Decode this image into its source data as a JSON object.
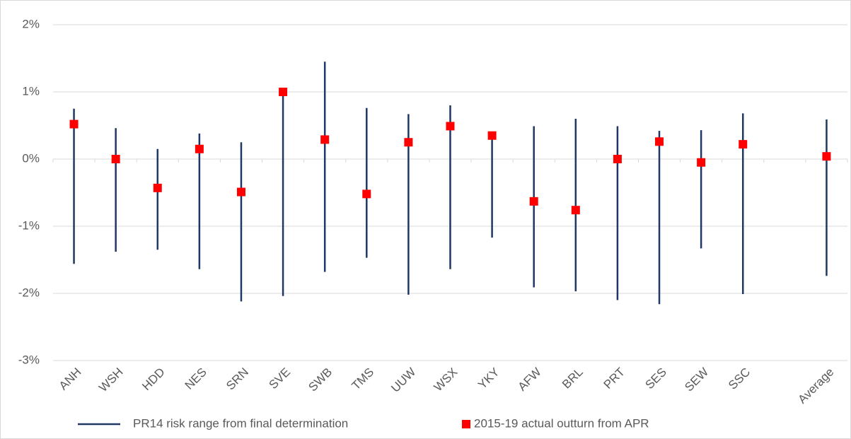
{
  "chart_data": {
    "type": "range",
    "categories": [
      "ANH",
      "WSH",
      "HDD",
      "NES",
      "SRN",
      "SVE",
      "SWB",
      "TMS",
      "UUW",
      "WSX",
      "YKY",
      "AFW",
      "BRL",
      "PRT",
      "SES",
      "SEW",
      "SSC",
      null,
      "Average"
    ],
    "series": [
      {
        "name": "PR14 risk range from final determination",
        "color": "#1f3864",
        "high": [
          0.75,
          0.46,
          0.15,
          0.38,
          0.25,
          1.0,
          1.45,
          0.76,
          0.67,
          0.8,
          0.35,
          0.49,
          0.6,
          0.49,
          0.42,
          0.43,
          0.68,
          null,
          0.59
        ],
        "low": [
          -1.56,
          -1.38,
          -1.35,
          -1.64,
          -2.12,
          -2.04,
          -1.68,
          -1.47,
          -2.02,
          -1.64,
          -1.17,
          -1.91,
          -1.97,
          -2.1,
          -2.16,
          -1.33,
          -2.01,
          null,
          -1.74
        ]
      },
      {
        "name": "2015-19 actual outturn from APR",
        "color": "#ff0000",
        "values": [
          0.52,
          0,
          -0.43,
          0.15,
          -0.49,
          1.0,
          0.29,
          -0.52,
          0.25,
          0.49,
          0.35,
          -0.63,
          -0.76,
          0,
          0.26,
          -0.05,
          0.22,
          null,
          0.04
        ]
      }
    ],
    "ylim": [
      -3,
      2
    ],
    "yticks": [
      {
        "value": -3,
        "label": "-3%"
      },
      {
        "value": -2,
        "label": "-2%"
      },
      {
        "value": -1,
        "label": "-1%"
      },
      {
        "value": 0,
        "label": "0%"
      },
      {
        "value": 1,
        "label": "1%"
      },
      {
        "value": 2,
        "label": "2%"
      }
    ],
    "grid": true,
    "legend": "bottom"
  }
}
